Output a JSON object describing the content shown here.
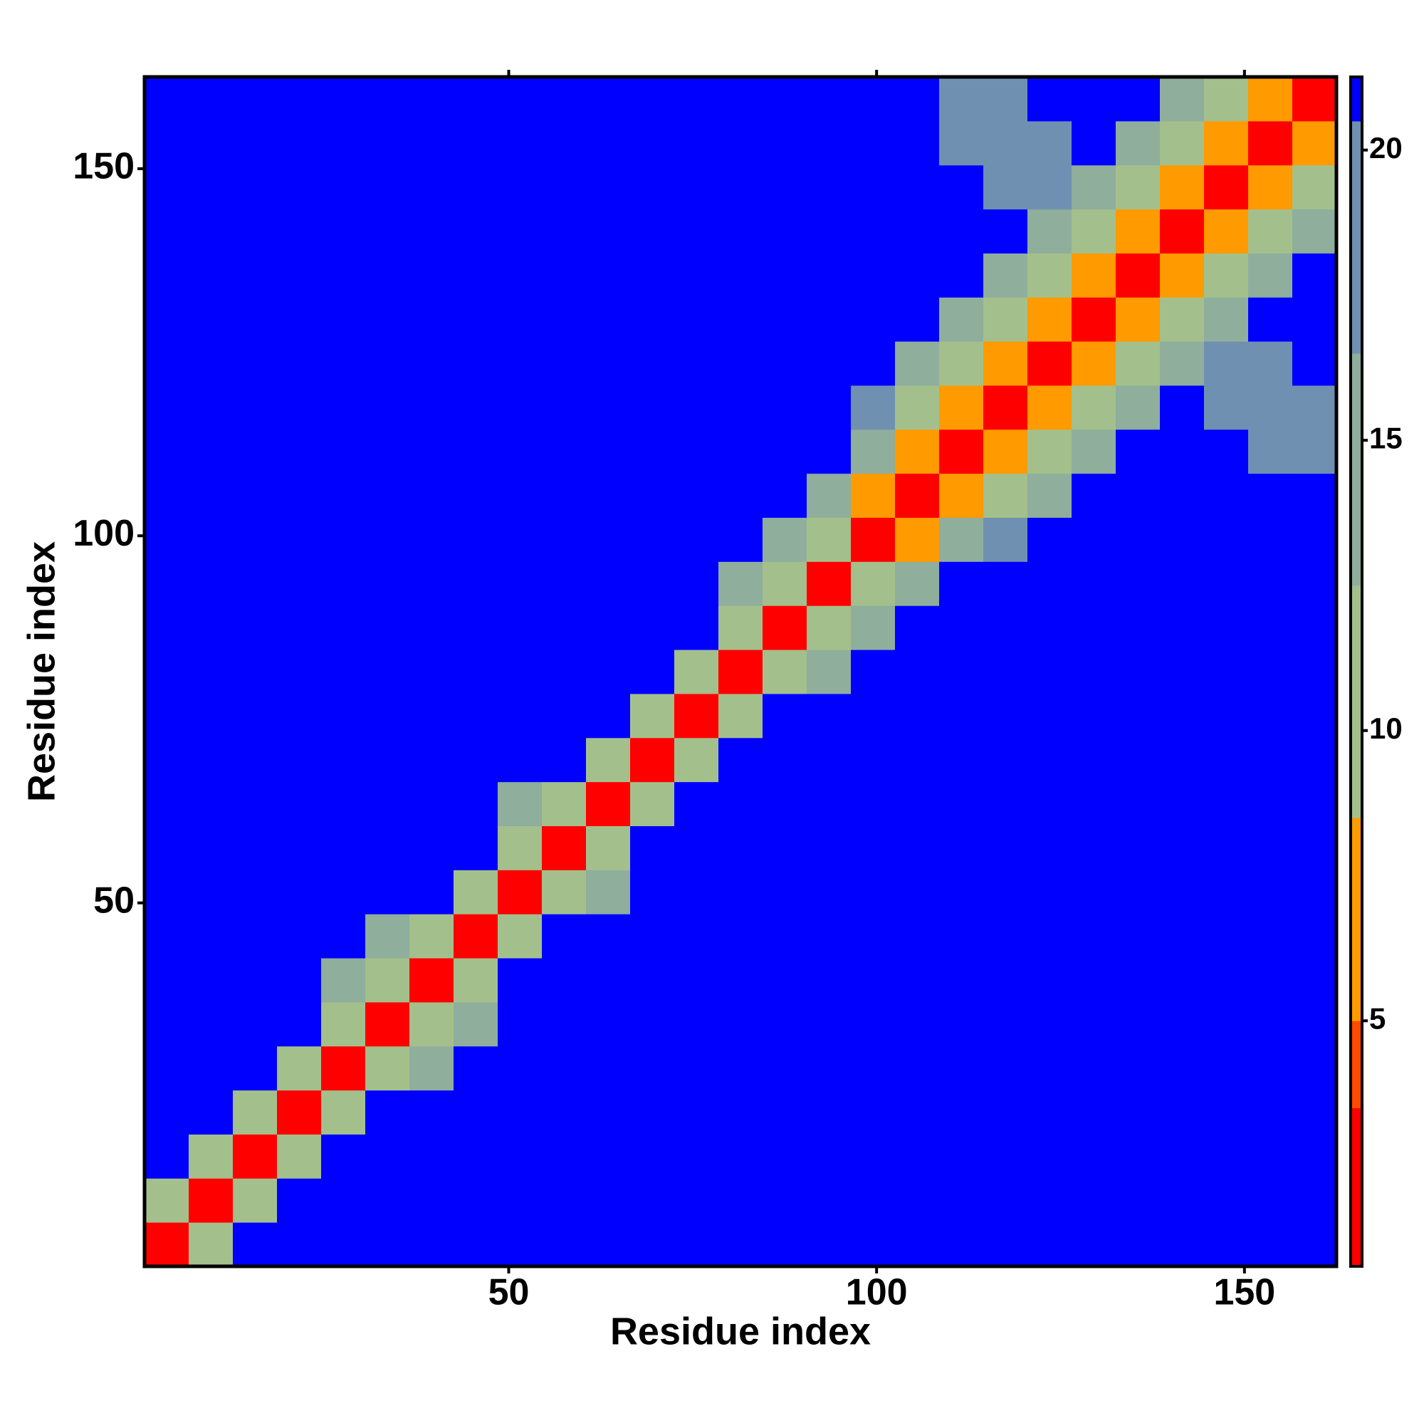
{
  "chart_data": {
    "type": "heatmap",
    "xlabel": "Residue index",
    "ylabel": "Residue index",
    "xlim": [
      0.5,
      162.5
    ],
    "ylim": [
      0.5,
      162.5
    ],
    "xticks": [
      50,
      100,
      150
    ],
    "yticks": [
      50,
      100,
      150
    ],
    "x": [
      3.5,
      9.5,
      15.5,
      21.5,
      27.5,
      33.5,
      39.5,
      45.5,
      51.5,
      57.5,
      63.5,
      69.5,
      75.5,
      81.5,
      87.5,
      93.5,
      99.5,
      105.5,
      111.5,
      117.5,
      123.5,
      129.5,
      135.5,
      141.5,
      147.5,
      153.5,
      159.5
    ],
    "y": [
      3.5,
      9.5,
      15.5,
      21.5,
      27.5,
      33.5,
      39.5,
      45.5,
      51.5,
      57.5,
      63.5,
      69.5,
      75.5,
      81.5,
      87.5,
      93.5,
      99.5,
      105.5,
      111.5,
      117.5,
      123.5,
      129.5,
      135.5,
      141.5,
      147.5,
      153.5,
      159.5
    ],
    "values": [
      [
        2,
        10,
        22,
        22,
        22,
        22,
        22,
        22,
        22,
        22,
        22,
        22,
        22,
        22,
        22,
        22,
        22,
        22,
        22,
        22,
        22,
        22,
        22,
        22,
        22,
        22,
        22
      ],
      [
        10,
        2,
        10,
        22,
        22,
        22,
        22,
        22,
        22,
        22,
        22,
        22,
        22,
        22,
        22,
        22,
        22,
        22,
        22,
        22,
        22,
        22,
        22,
        22,
        22,
        22,
        22
      ],
      [
        22,
        10,
        2,
        10,
        22,
        22,
        22,
        22,
        22,
        22,
        22,
        22,
        22,
        22,
        22,
        22,
        22,
        22,
        22,
        22,
        22,
        22,
        22,
        22,
        22,
        22,
        22
      ],
      [
        22,
        22,
        10,
        2,
        10,
        22,
        22,
        22,
        22,
        22,
        22,
        22,
        22,
        22,
        22,
        22,
        22,
        22,
        22,
        22,
        22,
        22,
        22,
        22,
        22,
        22,
        22
      ],
      [
        22,
        22,
        22,
        10,
        2,
        10,
        16,
        22,
        22,
        22,
        22,
        22,
        22,
        22,
        22,
        22,
        22,
        22,
        22,
        22,
        22,
        22,
        22,
        22,
        22,
        22,
        22
      ],
      [
        22,
        22,
        22,
        22,
        10,
        2,
        10,
        16,
        22,
        22,
        22,
        22,
        22,
        22,
        22,
        22,
        22,
        22,
        22,
        22,
        22,
        22,
        22,
        22,
        22,
        22,
        22
      ],
      [
        22,
        22,
        22,
        22,
        16,
        10,
        2,
        10,
        22,
        22,
        22,
        22,
        22,
        22,
        22,
        22,
        22,
        22,
        22,
        22,
        22,
        22,
        22,
        22,
        22,
        22,
        22
      ],
      [
        22,
        22,
        22,
        22,
        22,
        16,
        10,
        2,
        10,
        22,
        22,
        22,
        22,
        22,
        22,
        22,
        22,
        22,
        22,
        22,
        22,
        22,
        22,
        22,
        22,
        22,
        22
      ],
      [
        22,
        22,
        22,
        22,
        22,
        22,
        22,
        10,
        2,
        10,
        16,
        22,
        22,
        22,
        22,
        22,
        22,
        22,
        22,
        22,
        22,
        22,
        22,
        22,
        22,
        22,
        22
      ],
      [
        22,
        22,
        22,
        22,
        22,
        22,
        22,
        22,
        10,
        2,
        10,
        22,
        22,
        22,
        22,
        22,
        22,
        22,
        22,
        22,
        22,
        22,
        22,
        22,
        22,
        22,
        22
      ],
      [
        22,
        22,
        22,
        22,
        22,
        22,
        22,
        22,
        16,
        10,
        2,
        10,
        22,
        22,
        22,
        22,
        22,
        22,
        22,
        22,
        22,
        22,
        22,
        22,
        22,
        22,
        22
      ],
      [
        22,
        22,
        22,
        22,
        22,
        22,
        22,
        22,
        22,
        22,
        10,
        2,
        10,
        22,
        22,
        22,
        22,
        22,
        22,
        22,
        22,
        22,
        22,
        22,
        22,
        22,
        22
      ],
      [
        22,
        22,
        22,
        22,
        22,
        22,
        22,
        22,
        22,
        22,
        22,
        10,
        2,
        10,
        22,
        22,
        22,
        22,
        22,
        22,
        22,
        22,
        22,
        22,
        22,
        22,
        22
      ],
      [
        22,
        22,
        22,
        22,
        22,
        22,
        22,
        22,
        22,
        22,
        22,
        22,
        10,
        2,
        10,
        16,
        22,
        22,
        22,
        22,
        22,
        22,
        22,
        22,
        22,
        22,
        22
      ],
      [
        22,
        22,
        22,
        22,
        22,
        22,
        22,
        22,
        22,
        22,
        22,
        22,
        22,
        10,
        2,
        10,
        16,
        22,
        22,
        22,
        22,
        22,
        22,
        22,
        22,
        22,
        22
      ],
      [
        22,
        22,
        22,
        22,
        22,
        22,
        22,
        22,
        22,
        22,
        22,
        22,
        22,
        16,
        10,
        2,
        10,
        16,
        22,
        22,
        22,
        22,
        22,
        22,
        22,
        22,
        22
      ],
      [
        22,
        22,
        22,
        22,
        22,
        22,
        22,
        22,
        22,
        22,
        22,
        22,
        22,
        22,
        16,
        10,
        2,
        8,
        14,
        18,
        22,
        22,
        22,
        22,
        22,
        22,
        22
      ],
      [
        22,
        22,
        22,
        22,
        22,
        22,
        22,
        22,
        22,
        22,
        22,
        22,
        22,
        22,
        22,
        16,
        8,
        2,
        7,
        12,
        16,
        22,
        22,
        22,
        22,
        22,
        22
      ],
      [
        22,
        22,
        22,
        22,
        22,
        22,
        22,
        22,
        22,
        22,
        22,
        22,
        22,
        22,
        22,
        22,
        14,
        7,
        2,
        7,
        12,
        16,
        22,
        22,
        22,
        18,
        18
      ],
      [
        22,
        22,
        22,
        22,
        22,
        22,
        22,
        22,
        22,
        22,
        22,
        22,
        22,
        22,
        22,
        22,
        18,
        12,
        7,
        2,
        7,
        12,
        16,
        22,
        18,
        18,
        18
      ],
      [
        22,
        22,
        22,
        22,
        22,
        22,
        22,
        22,
        22,
        22,
        22,
        22,
        22,
        22,
        22,
        22,
        22,
        16,
        12,
        7,
        2,
        7,
        12,
        16,
        18,
        18,
        22
      ],
      [
        22,
        22,
        22,
        22,
        22,
        22,
        22,
        22,
        22,
        22,
        22,
        22,
        22,
        22,
        22,
        22,
        22,
        22,
        16,
        12,
        7,
        2,
        7,
        12,
        16,
        22,
        22
      ],
      [
        22,
        22,
        22,
        22,
        22,
        22,
        22,
        22,
        22,
        22,
        22,
        22,
        22,
        22,
        22,
        22,
        22,
        22,
        22,
        16,
        12,
        7,
        2,
        7,
        12,
        16,
        22
      ],
      [
        22,
        22,
        22,
        22,
        22,
        22,
        22,
        22,
        22,
        22,
        22,
        22,
        22,
        22,
        22,
        22,
        22,
        22,
        22,
        22,
        16,
        12,
        7,
        2,
        7,
        12,
        16
      ],
      [
        22,
        22,
        22,
        22,
        22,
        22,
        22,
        22,
        22,
        22,
        22,
        22,
        22,
        22,
        22,
        22,
        22,
        22,
        22,
        18,
        18,
        16,
        12,
        7,
        2,
        7,
        12
      ],
      [
        22,
        22,
        22,
        22,
        22,
        22,
        22,
        22,
        22,
        22,
        22,
        22,
        22,
        22,
        22,
        22,
        22,
        22,
        18,
        18,
        18,
        22,
        16,
        12,
        7,
        2,
        7
      ],
      [
        22,
        22,
        22,
        22,
        22,
        22,
        22,
        22,
        22,
        22,
        22,
        22,
        22,
        22,
        22,
        22,
        22,
        22,
        18,
        18,
        22,
        22,
        22,
        16,
        12,
        7,
        2
      ]
    ],
    "colorbar": {
      "clim": [
        0.77,
        21.26
      ],
      "ticks": [
        5,
        10,
        15,
        20
      ],
      "levels": [
        0.77,
        3.5,
        5,
        8.5,
        12.5,
        16.5,
        20.5,
        21.26
      ],
      "colors": [
        "#ff0000",
        "#ff4a00",
        "#ff9a00",
        "#a3c08c",
        "#8fae9c",
        "#7090b2",
        "#0000ff"
      ]
    }
  }
}
